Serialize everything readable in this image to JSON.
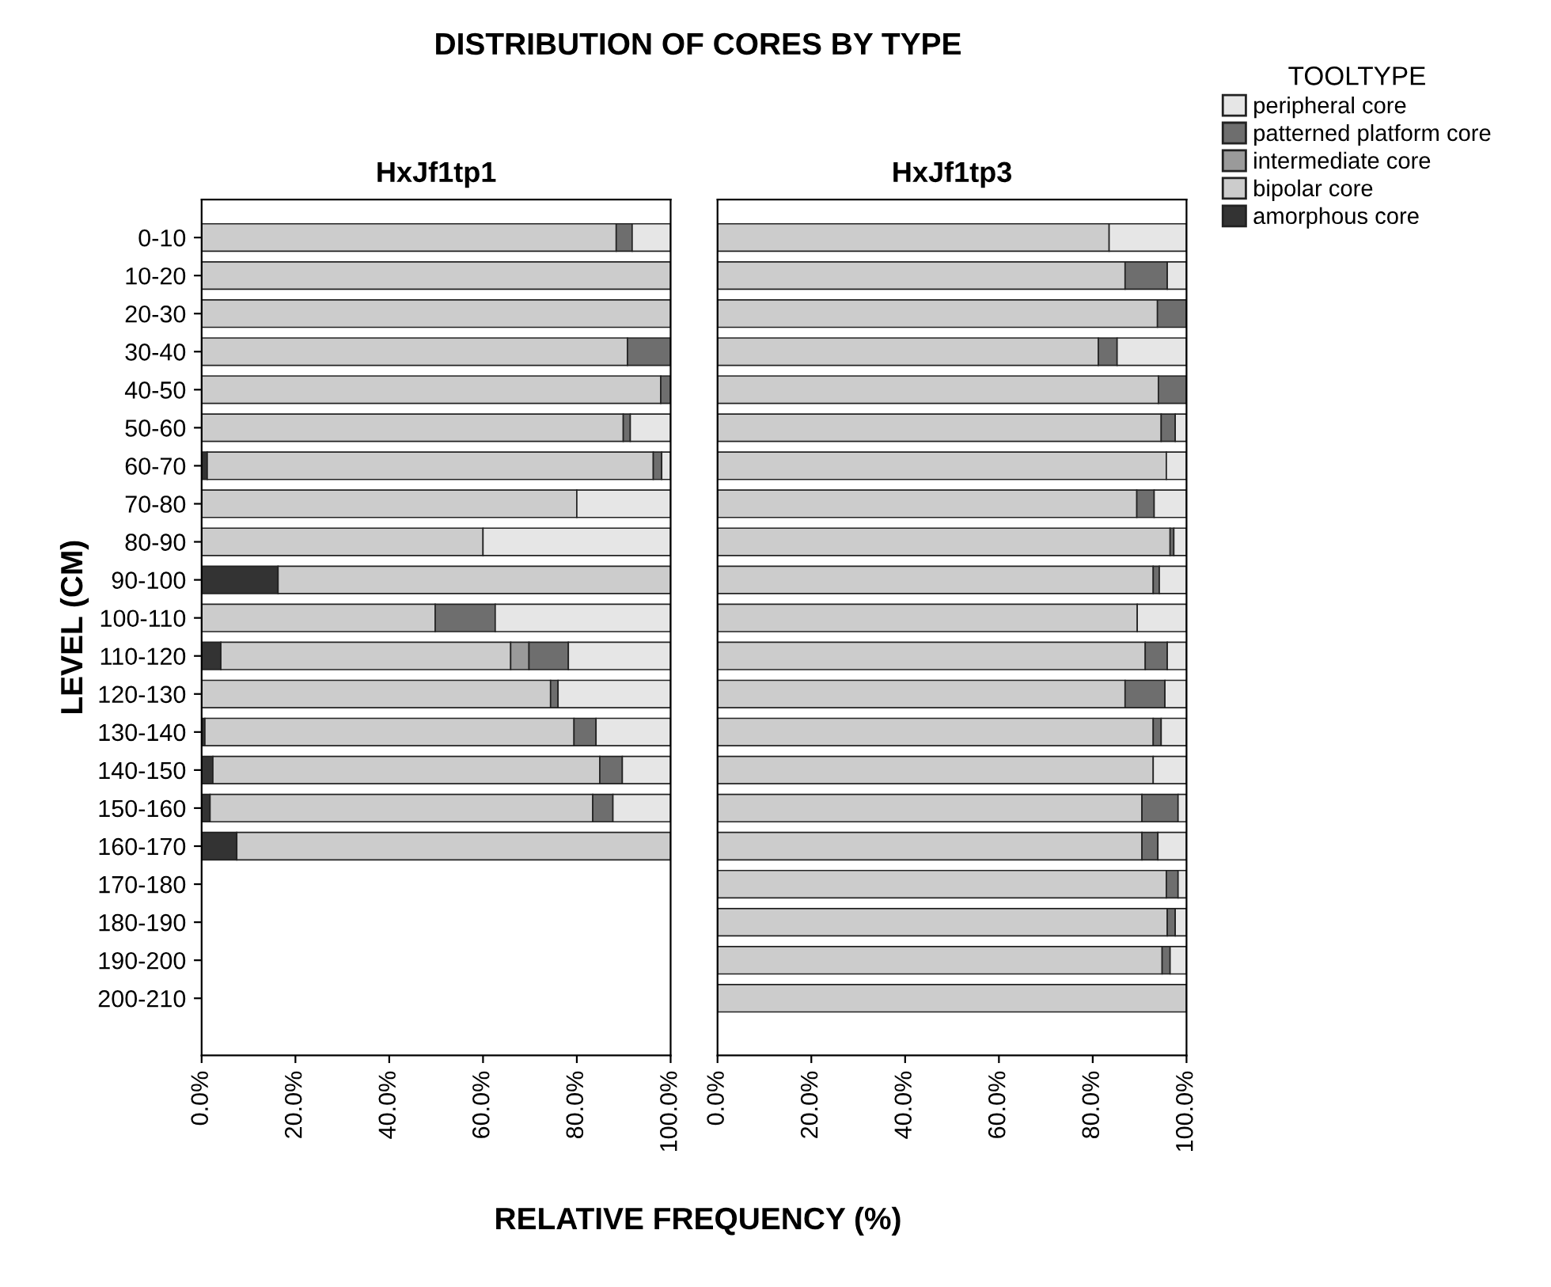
{
  "chart_data": [
    {
      "type": "bar",
      "orientation": "horizontal",
      "stacked": true,
      "title": "DISTRIBUTION OF CORES BY TYPE",
      "subtitle": "HxJf1tp1",
      "xlabel": "RELATIVE FREQUENCY (%)",
      "ylabel": "LEVEL (CM)",
      "legend_title": "TOOLTYPE",
      "legend": "top right",
      "grid": false,
      "categories": [
        "0-10",
        "10-20",
        "20-30",
        "30-40",
        "40-50",
        "50-60",
        "60-70",
        "70-80",
        "80-90",
        "90-100",
        "100-110",
        "110-120",
        "120-130",
        "130-140",
        "140-150",
        "150-160",
        "160-170",
        "170-180",
        "180-190",
        "190-200",
        "200-210"
      ],
      "xlim": [
        0,
        100
      ],
      "xticks": [
        {
          "value": 0,
          "label": "0.0%"
        },
        {
          "value": 20,
          "label": "20.0%"
        },
        {
          "value": 40,
          "label": "40.0%"
        },
        {
          "value": 60,
          "label": "60.0%"
        },
        {
          "value": 80,
          "label": "80.0%"
        },
        {
          "value": 100,
          "label": "100.0%"
        }
      ],
      "series": [
        {
          "name": "amorphous core",
          "color": "#333333",
          "values": [
            null,
            null,
            null,
            null,
            null,
            null,
            1.2,
            null,
            null,
            16.3,
            null,
            4.1,
            null,
            0.7,
            2.4,
            1.8,
            7.5,
            null,
            null,
            null,
            null
          ]
        },
        {
          "name": "bipolar core",
          "color": "#cccccc",
          "values": [
            88.4,
            100,
            100,
            90.8,
            97.9,
            89.9,
            95.1,
            80.0,
            60.0,
            83.7,
            49.8,
            61.8,
            74.4,
            78.7,
            82.5,
            81.6,
            92.5,
            null,
            null,
            null,
            null
          ]
        },
        {
          "name": "intermediate core",
          "color": "#9a9a9a",
          "values": [
            null,
            null,
            null,
            null,
            null,
            null,
            null,
            null,
            null,
            null,
            null,
            3.9,
            null,
            null,
            null,
            null,
            null,
            null,
            null,
            null,
            null
          ]
        },
        {
          "name": "patterned platform core",
          "color": "#6e6e6e",
          "values": [
            3.4,
            null,
            null,
            9.2,
            2.1,
            1.5,
            1.8,
            null,
            null,
            null,
            12.8,
            8.4,
            1.6,
            4.7,
            4.8,
            4.3,
            null,
            null,
            null,
            null,
            null
          ]
        },
        {
          "name": "peripheral core",
          "color": "#e6e6e6",
          "values": [
            8.2,
            null,
            null,
            null,
            null,
            8.6,
            1.9,
            20.0,
            40.0,
            null,
            37.4,
            21.8,
            24.0,
            15.9,
            10.3,
            12.3,
            null,
            null,
            null,
            null,
            null
          ]
        }
      ]
    },
    {
      "type": "bar",
      "orientation": "horizontal",
      "stacked": true,
      "subtitle": "HxJf1tp3",
      "tick_labels": "x",
      "grid": false,
      "xlim": [
        0,
        100
      ],
      "xticks": [
        {
          "value": 0,
          "label": "0.0%"
        },
        {
          "value": 20,
          "label": "20.0%"
        },
        {
          "value": 40,
          "label": "40.0%"
        },
        {
          "value": 60,
          "label": "60.0%"
        },
        {
          "value": 80,
          "label": "80.0%"
        },
        {
          "value": 100,
          "label": "100.0%"
        }
      ],
      "series": [
        {
          "color": "#cccccc",
          "values": [
            83.5,
            86.9,
            93.8,
            81.2,
            94.0,
            94.6,
            95.7,
            89.4,
            96.5,
            92.9,
            89.5,
            91.2,
            86.9,
            92.9,
            92.9,
            90.5,
            90.5,
            95.7,
            95.9,
            94.8,
            100
          ]
        },
        {
          "color": "#6e6e6e",
          "values": [
            null,
            9.0,
            6.2,
            4.0,
            6.0,
            3.0,
            null,
            3.7,
            0.8,
            1.3,
            null,
            4.7,
            8.5,
            1.7,
            null,
            7.7,
            3.4,
            2.5,
            1.7,
            1.7,
            null
          ]
        },
        {
          "color": "#e6e6e6",
          "values": [
            16.5,
            4.1,
            null,
            14.8,
            null,
            2.4,
            4.3,
            6.9,
            2.7,
            5.8,
            10.5,
            4.1,
            4.6,
            5.4,
            7.1,
            1.8,
            6.1,
            1.8,
            2.4,
            3.5,
            null
          ]
        }
      ]
    }
  ]
}
